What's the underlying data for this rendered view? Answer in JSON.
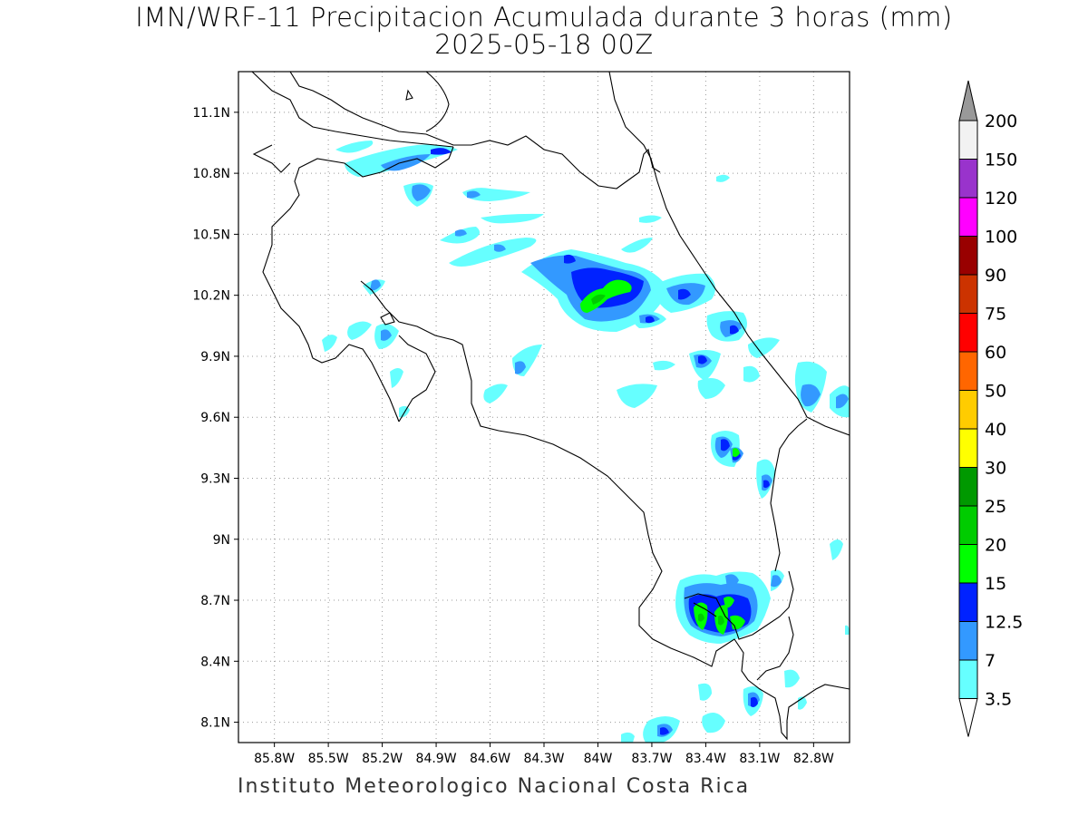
{
  "title": {
    "line1": "IMN/WRF-11 Precipitacion Acumulada durante 3 horas (mm)",
    "line2": "2025-05-18 00Z"
  },
  "footer": "Instituto Meteorologico Nacional Costa Rica",
  "map": {
    "lon_range": [
      -86.0,
      -82.6
    ],
    "lat_range": [
      8.0,
      11.3
    ],
    "lon_ticks": [
      "85.8W",
      "85.5W",
      "85.2W",
      "84.9W",
      "84.6W",
      "84.3W",
      "84W",
      "83.7W",
      "83.4W",
      "83.1W",
      "82.8W"
    ],
    "lat_ticks": [
      "11.1N",
      "10.8N",
      "10.5N",
      "10.2N",
      "9.9N",
      "9.6N",
      "9.3N",
      "9N",
      "8.7N",
      "8.4N",
      "8.1N"
    ],
    "gridlines": true
  },
  "colorbar": {
    "labels": [
      "3.5",
      "7",
      "12.5",
      "15",
      "20",
      "25",
      "30",
      "40",
      "50",
      "60",
      "75",
      "90",
      "100",
      "120",
      "150",
      "200"
    ],
    "colors": [
      "#66ffff",
      "#3399ff",
      "#0022ff",
      "#00ff00",
      "#00cc00",
      "#009900",
      "#ffff00",
      "#ffcc00",
      "#ff6600",
      "#ff0000",
      "#cc3300",
      "#990000",
      "#ff00ff",
      "#9933cc",
      "#f2f2f2"
    ],
    "top_arrow_color": "#999999",
    "bottom_arrow_color": "#ffffff"
  }
}
